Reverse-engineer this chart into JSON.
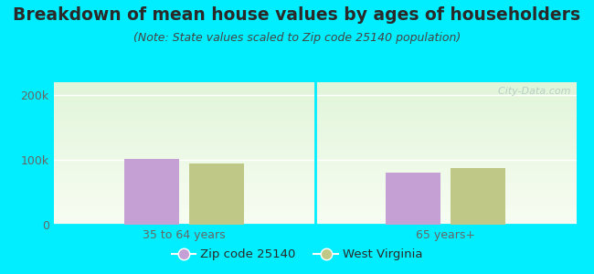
{
  "title": "Breakdown of mean house values by ages of householders",
  "subtitle": "(Note: State values scaled to Zip code 25140 population)",
  "categories": [
    "35 to 64 years",
    "65 years+"
  ],
  "zip_values": [
    102000,
    80000
  ],
  "state_values": [
    95000,
    88000
  ],
  "zip_color": "#c4a0d4",
  "state_color": "#c0c888",
  "background_outer": "#00eeff",
  "ylim": [
    0,
    220000
  ],
  "ytick_labels": [
    "0",
    "100k",
    "200k"
  ],
  "ytick_vals": [
    0,
    100000,
    200000
  ],
  "watermark": "  City-Data.com",
  "legend_zip": "Zip code 25140",
  "legend_state": "West Virginia",
  "title_fontsize": 13.5,
  "subtitle_fontsize": 9,
  "tick_fontsize": 9,
  "legend_fontsize": 9.5,
  "text_color": "#2a2a2a",
  "subtitle_color": "#444444",
  "tick_color": "#666666"
}
